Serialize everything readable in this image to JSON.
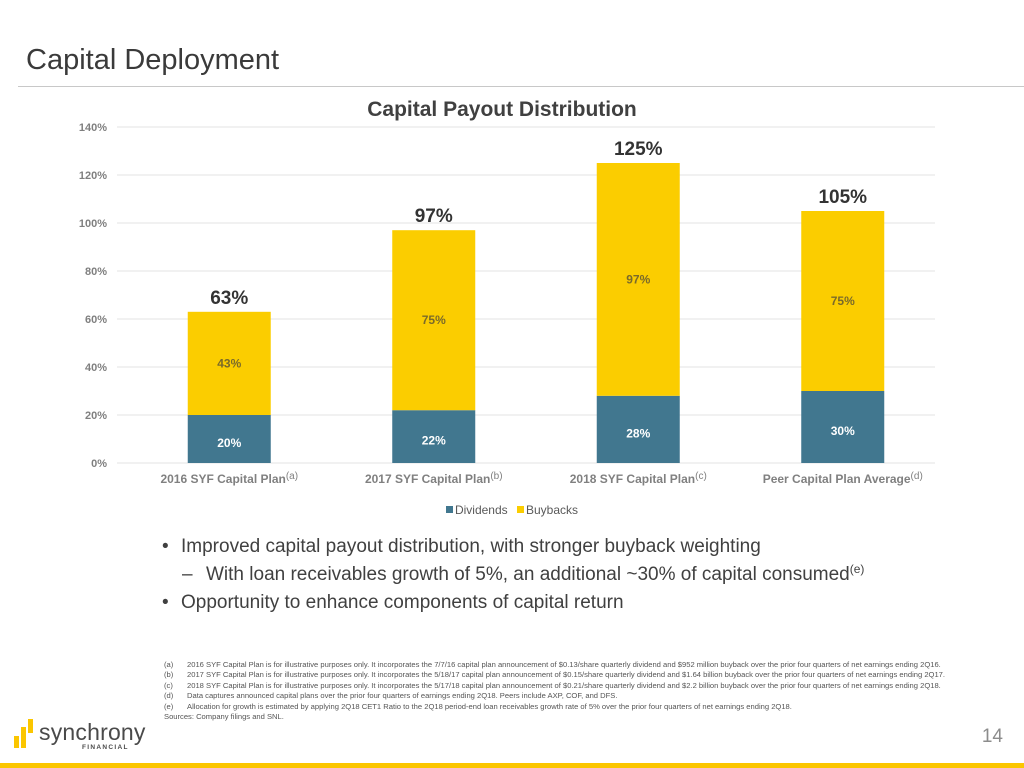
{
  "page": {
    "title": "Capital Deployment",
    "page_number": "14"
  },
  "chart_data": {
    "type": "bar",
    "stacked": true,
    "title": "Capital Payout Distribution",
    "xlabel": "",
    "ylabel": "",
    "ylim": [
      0,
      140
    ],
    "yticks": [
      0,
      20,
      40,
      60,
      80,
      100,
      120,
      140
    ],
    "ytick_suffix": "%",
    "grid": true,
    "legend_position": "bottom-center",
    "categories": [
      {
        "label": "2016 SYF Capital Plan",
        "footnote": "(a)"
      },
      {
        "label": "2017 SYF Capital Plan",
        "footnote": "(b)"
      },
      {
        "label": "2018 SYF Capital Plan",
        "footnote": "(c)"
      },
      {
        "label": "Peer Capital Plan Average",
        "footnote": "(d)"
      }
    ],
    "series": [
      {
        "name": "Dividends",
        "color": "#41778f",
        "values": [
          20,
          22,
          28,
          30
        ]
      },
      {
        "name": "Buybacks",
        "color": "#fbcd00",
        "values": [
          43,
          75,
          97,
          75
        ]
      }
    ],
    "totals": [
      63,
      97,
      125,
      105
    ]
  },
  "bullets": {
    "b1": "Improved capital payout distribution, with stronger buyback weighting",
    "sub1": "With loan receivables growth of 5%, an additional ~30% of capital consumed",
    "sub1_sup": "(e)",
    "b2": "Opportunity to enhance components of capital return",
    "bullet_glyph": "•",
    "dash_glyph": "–"
  },
  "footnotes": [
    {
      "label": "(a)",
      "text": "2016 SYF Capital Plan is for illustrative purposes only. It incorporates the 7/7/16 capital plan announcement of $0.13/share quarterly dividend and $952 million buyback over the prior four quarters of net earnings ending 2Q16."
    },
    {
      "label": "(b)",
      "text": "2017 SYF Capital Plan is for illustrative purposes only.  It incorporates the 5/18/17 capital plan announcement of $0.15/share quarterly dividend and $1.64 billion buyback over the prior four quarters of net earnings ending 2Q17."
    },
    {
      "label": "(c)",
      "text": "2018 SYF Capital Plan is for illustrative purposes only.  It incorporates the 5/17/18 capital plan announcement of $0.21/share quarterly dividend and $2.2 billion buyback over the prior four quarters of net earnings ending 2Q18."
    },
    {
      "label": "(d)",
      "text": "Data captures announced capital plans over the prior four quarters of earnings ending 2Q18. Peers include AXP, COF, and DFS."
    },
    {
      "label": "(e)",
      "text": "Allocation for growth is estimated by applying 2Q18 CET1 Ratio to the 2Q18 period-end loan receivables growth rate of 5% over the prior four quarters of net earnings ending 2Q18."
    }
  ],
  "sources": "Sources: Company filings and SNL.",
  "logo": {
    "wordmark": "synchrony",
    "subtext": "FINANCIAL"
  },
  "colors": {
    "accent_yellow": "#fbc600",
    "dividend_blue": "#41778f",
    "buyback_yellow": "#fbcd00"
  }
}
